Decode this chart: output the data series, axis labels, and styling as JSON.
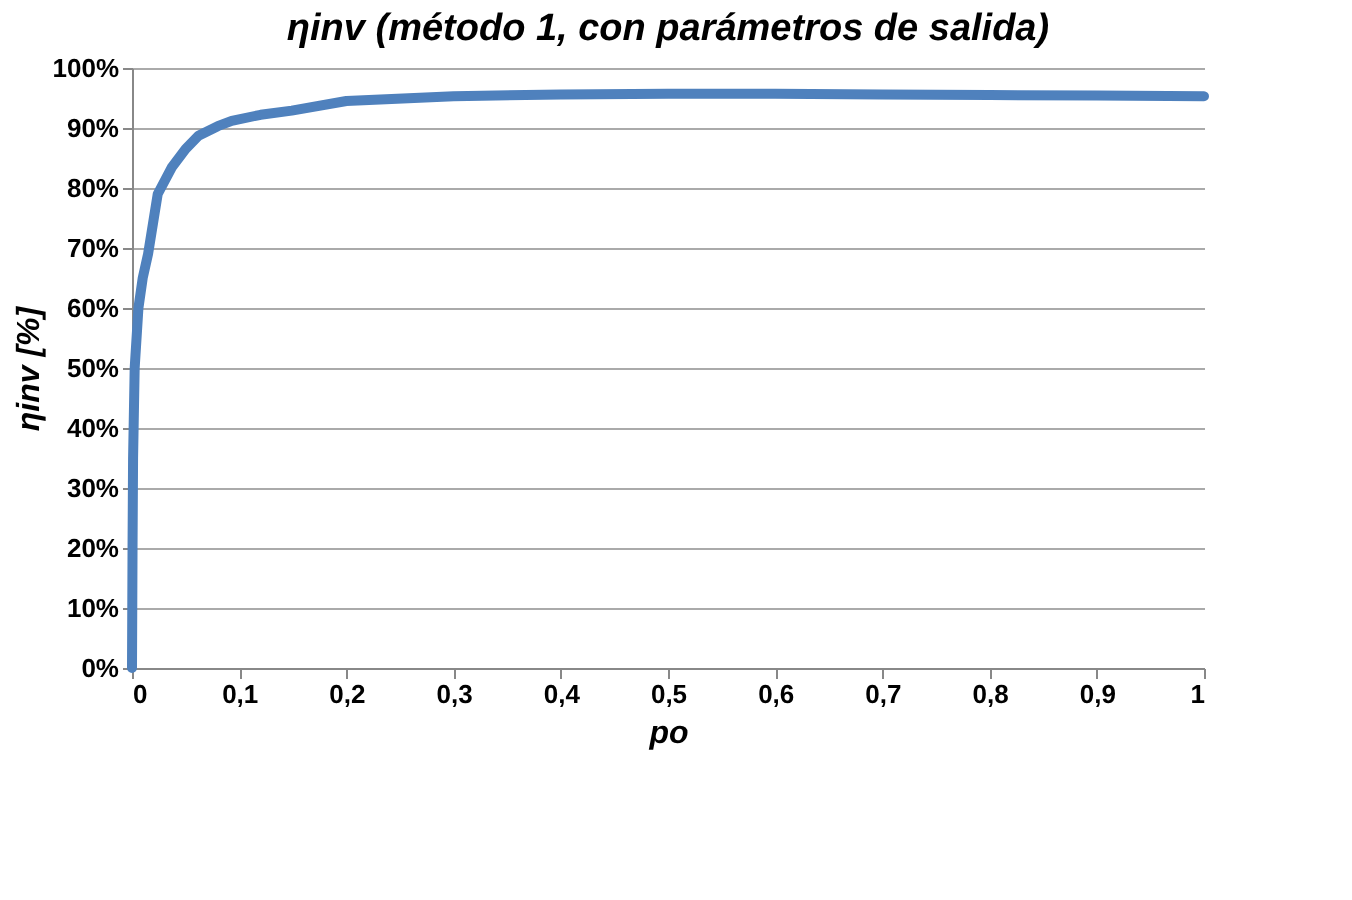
{
  "chart_data": {
    "type": "line",
    "title": "ηinv (método 1, con parámetros de salida)",
    "xlabel": "po",
    "ylabel": "ηinv [%]",
    "x": [
      0,
      0.0005,
      0.001,
      0.0025,
      0.006,
      0.01,
      0.015,
      0.024,
      0.037,
      0.05,
      0.062,
      0.08,
      0.093,
      0.12,
      0.149,
      0.2,
      0.3,
      0.4,
      0.5,
      0.6,
      0.7,
      0.8,
      0.9,
      1
    ],
    "series": [
      {
        "color": "#4f81bd",
        "values": [
          0,
          20,
          35,
          50,
          60,
          65,
          69,
          79,
          83.4,
          86.5,
          88.7,
          90.3,
          91.2,
          92.2,
          92.9,
          94.5,
          95.3,
          95.6,
          95.7,
          95.7,
          95.6,
          95.5,
          95.4,
          95.3
        ]
      }
    ],
    "xlim": [
      0,
      1
    ],
    "ylim": [
      0,
      100
    ],
    "xticks": [
      0,
      {
        "value": 0.1,
        "label": "0,1"
      },
      {
        "value": 0.2,
        "label": "0,2"
      },
      {
        "value": 0.3,
        "label": "0,3"
      },
      {
        "value": 0.4,
        "label": "0,4"
      },
      {
        "value": 0.5,
        "label": "0,5"
      },
      {
        "value": 0.6,
        "label": "0,6"
      },
      {
        "value": 0.7,
        "label": "0,7"
      },
      {
        "value": 0.8,
        "label": "0,8"
      },
      {
        "value": 0.9,
        "label": "0,9"
      },
      1
    ],
    "yticks": [
      {
        "value": 0,
        "label": "0%"
      },
      {
        "value": 10,
        "label": "10%"
      },
      {
        "value": 20,
        "label": "20%"
      },
      {
        "value": 30,
        "label": "30%"
      },
      {
        "value": 40,
        "label": "40%"
      },
      {
        "value": 50,
        "label": "50%"
      },
      {
        "value": 60,
        "label": "60%"
      },
      {
        "value": 70,
        "label": "70%"
      },
      {
        "value": 80,
        "label": "80%"
      },
      {
        "value": 90,
        "label": "90%"
      },
      {
        "value": 100,
        "label": "100%"
      }
    ],
    "grid": "y",
    "marker": "none",
    "line_style": "solid"
  }
}
